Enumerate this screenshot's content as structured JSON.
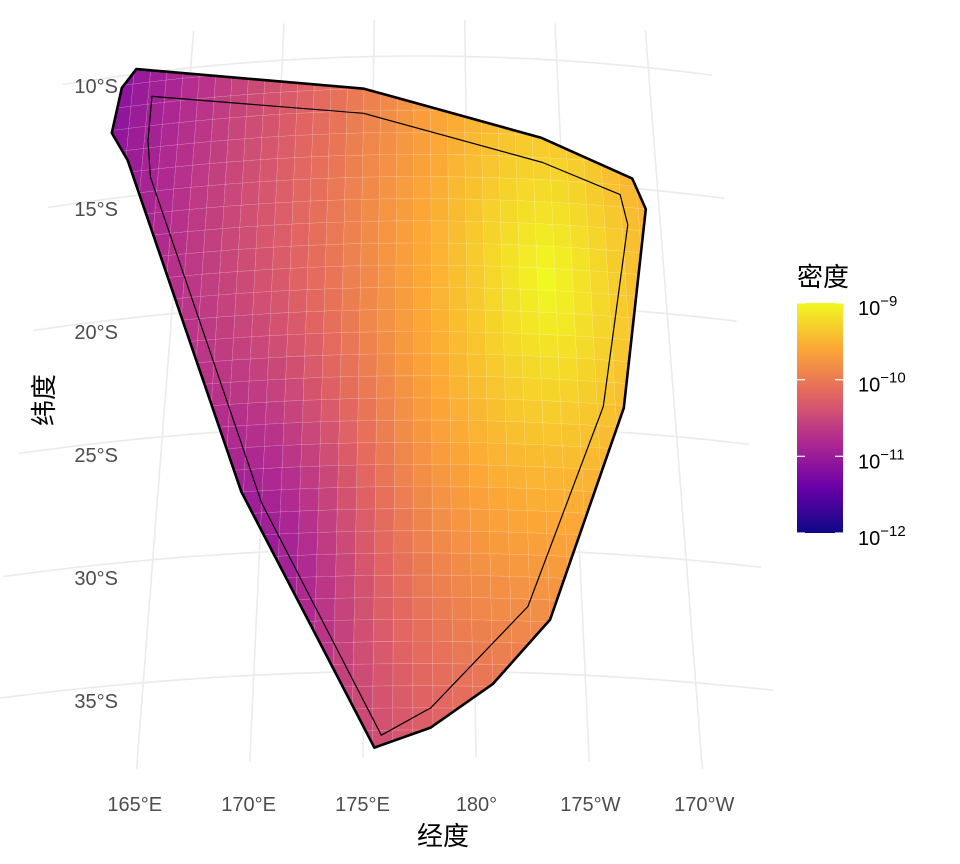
{
  "chart_data": {
    "type": "heatmap",
    "title": "",
    "xlabel": "经度",
    "ylabel": "纬度",
    "x_ticks": [
      "165°E",
      "170°E",
      "175°E",
      "180°",
      "175°W",
      "170°W"
    ],
    "x_tick_values": [
      165,
      170,
      175,
      180,
      185,
      190
    ],
    "y_ticks": [
      "10°S",
      "15°S",
      "20°S",
      "25°S",
      "30°S",
      "35°S"
    ],
    "y_tick_values": [
      -10,
      -15,
      -20,
      -25,
      -30,
      -35
    ],
    "xlim": [
      161,
      192
    ],
    "ylim": [
      -38.5,
      -9.5
    ],
    "grid": true,
    "legend": {
      "title": "密度",
      "position": "right",
      "scale": "log10",
      "range": [
        1e-12,
        1e-09
      ],
      "breaks": [
        {
          "base": "10",
          "exp": "−9"
        },
        {
          "base": "10",
          "exp": "−10"
        },
        {
          "base": "10",
          "exp": "−11"
        },
        {
          "base": "10",
          "exp": "−12"
        }
      ],
      "palette": [
        "#0d0887",
        "#6a00a8",
        "#b12a90",
        "#e16462",
        "#fca636",
        "#f0f921"
      ]
    },
    "region_outline": [
      [
        162.0,
        -9.8
      ],
      [
        174.5,
        -11.3
      ],
      [
        184.0,
        -13.2
      ],
      [
        188.7,
        -14.6
      ],
      [
        189.3,
        -15.8
      ],
      [
        187.5,
        -24.0
      ],
      [
        183.5,
        -32.8
      ],
      [
        180.8,
        -35.5
      ],
      [
        178.0,
        -37.3
      ],
      [
        175.5,
        -38.1
      ],
      [
        169.0,
        -27.5
      ],
      [
        162.0,
        -13.5
      ],
      [
        161.0,
        -12.3
      ],
      [
        161.3,
        -10.5
      ]
    ],
    "inner_outline": [
      [
        163.0,
        -11.0
      ],
      [
        174.5,
        -12.3
      ],
      [
        184.0,
        -14.2
      ],
      [
        188.0,
        -15.3
      ],
      [
        188.3,
        -16.5
      ],
      [
        186.5,
        -24.0
      ],
      [
        182.5,
        -32.3
      ],
      [
        178.0,
        -36.5
      ],
      [
        175.8,
        -37.6
      ],
      [
        170.0,
        -28.0
      ],
      [
        163.3,
        -14.3
      ],
      [
        163.0,
        -12.8
      ]
    ],
    "density_peak": {
      "lon": 184.0,
      "lat": -19.0,
      "value": 1e-09
    },
    "density_min": {
      "lon": 170.5,
      "lat": -30.0,
      "value": 3e-12
    }
  }
}
